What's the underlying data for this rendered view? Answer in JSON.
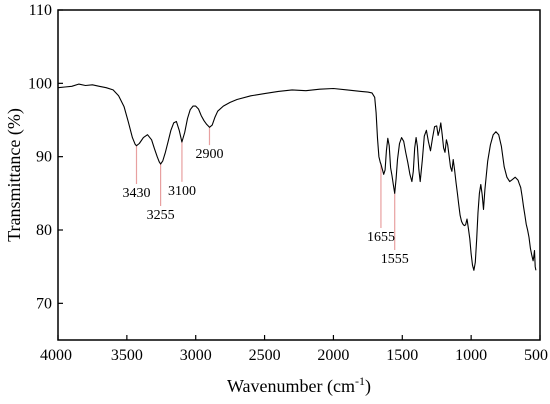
{
  "chart_data": {
    "type": "line",
    "xlabel": "Wavenumber (cm",
    "xlabel_sup": "-1",
    "xlabel_close": ")",
    "ylabel": "Transmittance (%)",
    "xlim": [
      4000,
      500
    ],
    "x_reversed": true,
    "ylim": [
      65,
      110
    ],
    "xticks": [
      4000,
      3500,
      3000,
      2500,
      2000,
      1500,
      1000,
      500
    ],
    "xtick_labels": [
      "4000",
      "3500",
      "3000",
      "2500",
      "2000",
      "1500",
      "1000",
      "500"
    ],
    "yticks": [
      70,
      80,
      90,
      100,
      110
    ],
    "ytick_labels": [
      "70",
      "80",
      "90",
      "100",
      "110"
    ],
    "grid": false,
    "line_color": "#000000",
    "annotation_color": "#e8a0a0",
    "annotations": [
      {
        "label": "3430",
        "x": 3430,
        "y": 91.5,
        "label_y": 84.5
      },
      {
        "label": "3255",
        "x": 3255,
        "y": 89.0,
        "label_y": 81.5
      },
      {
        "label": "3100",
        "x": 3100,
        "y": 92.0,
        "label_y": 84.8
      },
      {
        "label": "2900",
        "x": 2900,
        "y": 94.0,
        "label_y": 89.8
      },
      {
        "label": "1655",
        "x": 1655,
        "y": 89.0,
        "label_y": 78.5
      },
      {
        "label": "1555",
        "x": 1555,
        "y": 85.0,
        "label_y": 75.5
      }
    ],
    "series": [
      {
        "x": [
          4000,
          3950,
          3900,
          3850,
          3800,
          3750,
          3700,
          3650,
          3600,
          3560,
          3520,
          3490,
          3460,
          3440,
          3430,
          3410,
          3380,
          3350,
          3320,
          3300,
          3280,
          3265,
          3255,
          3240,
          3220,
          3200,
          3180,
          3160,
          3140,
          3120,
          3100,
          3080,
          3060,
          3040,
          3020,
          3000,
          2980,
          2960,
          2940,
          2920,
          2900,
          2880,
          2860,
          2840,
          2800,
          2750,
          2700,
          2600,
          2500,
          2400,
          2300,
          2200,
          2100,
          2000,
          1900,
          1800,
          1750,
          1720,
          1700,
          1690,
          1680,
          1670,
          1660,
          1655,
          1645,
          1635,
          1625,
          1615,
          1605,
          1595,
          1585,
          1575,
          1565,
          1555,
          1545,
          1535,
          1520,
          1505,
          1490,
          1475,
          1460,
          1445,
          1430,
          1420,
          1410,
          1400,
          1390,
          1380,
          1370,
          1355,
          1340,
          1325,
          1310,
          1295,
          1280,
          1265,
          1250,
          1240,
          1230,
          1220,
          1210,
          1200,
          1190,
          1180,
          1170,
          1160,
          1150,
          1140,
          1130,
          1120,
          1110,
          1100,
          1090,
          1080,
          1070,
          1060,
          1050,
          1040,
          1030,
          1020,
          1010,
          1000,
          990,
          980,
          970,
          960,
          950,
          940,
          930,
          920,
          910,
          900,
          880,
          860,
          840,
          820,
          800,
          780,
          760,
          740,
          720,
          700,
          680,
          660,
          650,
          640,
          630,
          620,
          610,
          600,
          590,
          580,
          570,
          560,
          550,
          545,
          540,
          535,
          530
        ],
        "y": [
          99.4,
          99.5,
          99.6,
          99.9,
          99.7,
          99.8,
          99.6,
          99.4,
          99.1,
          98.3,
          96.8,
          94.8,
          92.6,
          91.7,
          91.5,
          91.8,
          92.6,
          93.0,
          92.3,
          91.1,
          90.0,
          89.3,
          89.0,
          89.4,
          90.6,
          92.1,
          93.6,
          94.6,
          94.8,
          93.6,
          92.0,
          93.3,
          95.2,
          96.4,
          96.9,
          96.9,
          96.5,
          95.6,
          94.9,
          94.4,
          94.0,
          94.3,
          95.4,
          96.2,
          96.9,
          97.4,
          97.8,
          98.3,
          98.6,
          98.9,
          99.1,
          99.0,
          99.2,
          99.3,
          99.1,
          98.9,
          98.8,
          98.7,
          98.1,
          96.0,
          92.5,
          90.0,
          89.2,
          89.0,
          88.3,
          87.6,
          88.2,
          90.8,
          92.5,
          91.5,
          88.5,
          87.4,
          86.2,
          85.0,
          87.0,
          89.6,
          91.8,
          92.6,
          92.1,
          90.6,
          89.2,
          87.6,
          86.6,
          88.0,
          91.2,
          92.6,
          91.4,
          88.3,
          86.6,
          89.5,
          92.8,
          93.6,
          92.0,
          90.8,
          92.6,
          94.1,
          94.2,
          92.9,
          93.6,
          94.6,
          93.0,
          91.2,
          90.6,
          92.3,
          91.6,
          90.1,
          88.6,
          88.0,
          89.6,
          88.2,
          86.5,
          85.0,
          83.5,
          82.0,
          81.2,
          80.8,
          80.6,
          80.7,
          81.5,
          80.2,
          78.8,
          76.8,
          75.2,
          74.5,
          75.6,
          78.8,
          82.4,
          85.0,
          86.2,
          84.8,
          82.8,
          85.5,
          89.4,
          91.6,
          93.0,
          93.4,
          93.0,
          91.4,
          88.6,
          87.2,
          86.6,
          86.9,
          87.2,
          86.8,
          86.3,
          85.8,
          84.6,
          83.2,
          82.0,
          80.8,
          80.0,
          79.0,
          77.5,
          76.6,
          75.8,
          76.4,
          77.2,
          75.0,
          74.5
        ]
      }
    ]
  }
}
